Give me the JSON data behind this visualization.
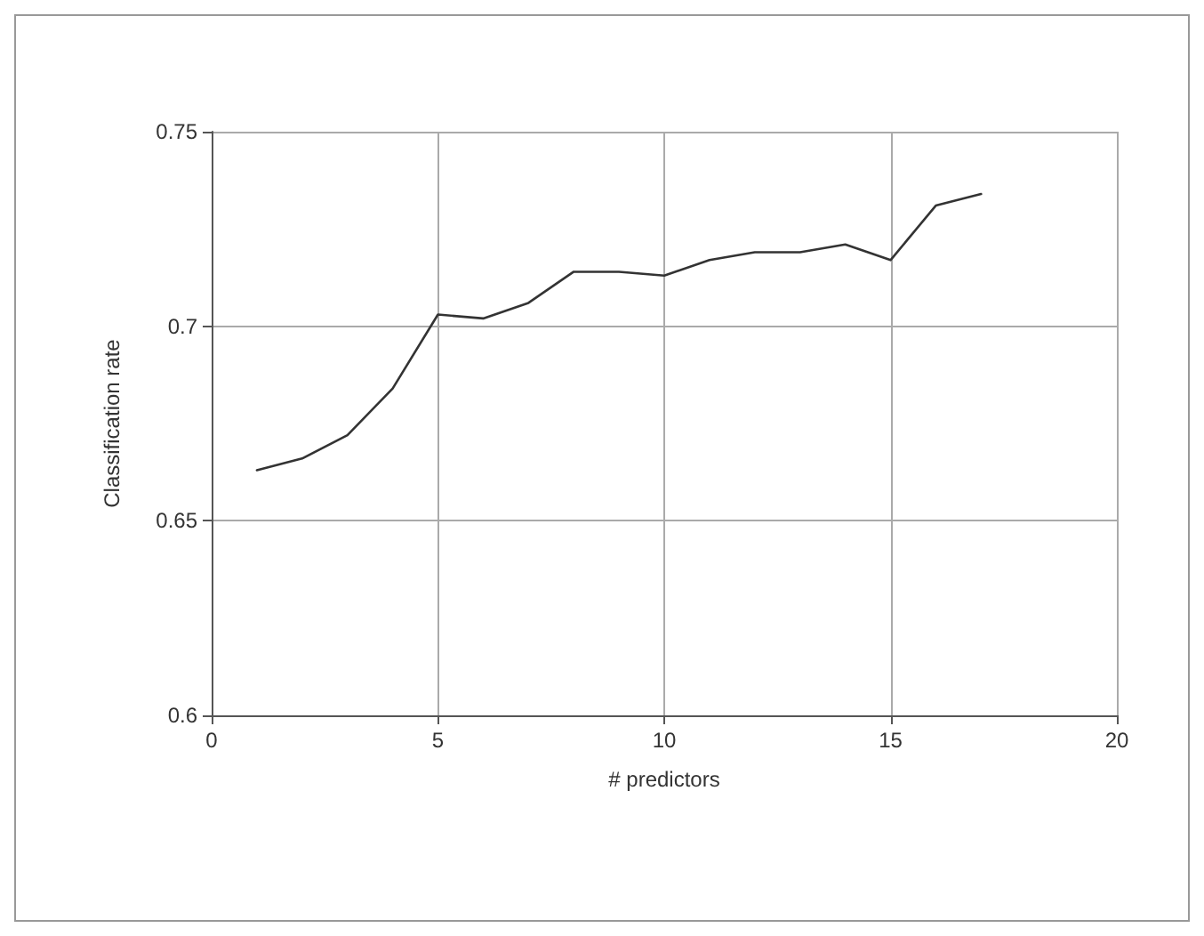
{
  "chart_data": {
    "type": "line",
    "xlabel": "# predictors",
    "ylabel": "Classification rate",
    "x": [
      1,
      2,
      3,
      4,
      5,
      6,
      7,
      8,
      9,
      10,
      11,
      12,
      13,
      14,
      15,
      16,
      17
    ],
    "series": [
      {
        "color": "#333333",
        "values": [
          0.663,
          0.666,
          0.672,
          0.684,
          0.703,
          0.702,
          0.706,
          0.714,
          0.714,
          0.713,
          0.717,
          0.719,
          0.719,
          0.721,
          0.717,
          0.731,
          0.734
        ]
      }
    ],
    "xlim": [
      0,
      20
    ],
    "xticks": [
      0,
      5,
      10,
      15,
      20
    ],
    "ylim": [
      0.6,
      0.75
    ],
    "yticks": [
      0.6,
      0.65,
      0.7,
      0.75
    ],
    "grid": true,
    "marker": "none",
    "line_style": "solid"
  }
}
